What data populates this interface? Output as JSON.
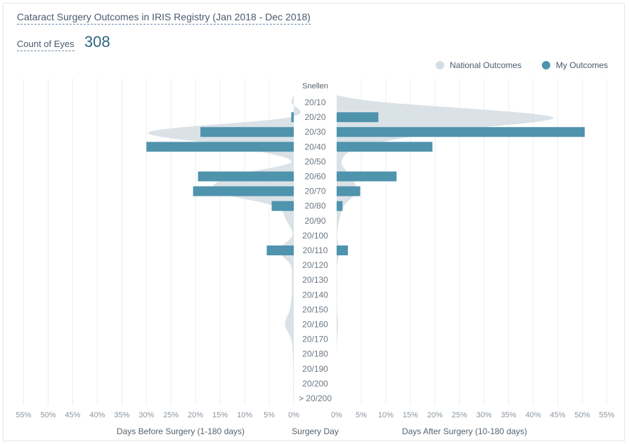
{
  "chart_data": {
    "type": "bar",
    "title": "Cataract Surgery Outcomes in IRIS Registry (Jan 2018 - Dec 2018)",
    "count_label": "Count of Eyes",
    "count_value": "308",
    "category_axis_label": "Snellen",
    "categories": [
      "20/10",
      "20/20",
      "20/30",
      "20/40",
      "20/50",
      "20/60",
      "20/70",
      "20/80",
      "20/90",
      "20/100",
      "20/110",
      "20/120",
      "20/130",
      "20/140",
      "20/150",
      "20/160",
      "20/170",
      "20/180",
      "20/190",
      "20/200",
      "> 20/200"
    ],
    "x_ticks_left": [
      "55%",
      "50%",
      "45%",
      "40%",
      "35%",
      "30%",
      "25%",
      "20%",
      "15%",
      "10%",
      "5%",
      "0%"
    ],
    "x_ticks_right": [
      "0%",
      "5%",
      "10%",
      "15%",
      "20%",
      "25%",
      "30%",
      "35%",
      "40%",
      "45%",
      "50%",
      "55%"
    ],
    "x_range": [
      0,
      55
    ],
    "xlabel_left": "Days Before Surgery (1-180 days)",
    "xlabel_center": "Surgery Day",
    "xlabel_right": "Days After Surgery (10-180 days)",
    "legend_position": "top-right",
    "grid": true,
    "series": [
      {
        "name": "My Outcomes",
        "color": "#4f93ad",
        "before": [
          0,
          0.5,
          19,
          30,
          0,
          19.5,
          20.5,
          4.5,
          0,
          0,
          5.5,
          0,
          0,
          0,
          0,
          0,
          0,
          0,
          0,
          0,
          0
        ],
        "after": [
          0,
          8.5,
          50.5,
          19.5,
          0,
          12.2,
          4.8,
          1.2,
          0,
          0,
          2.3,
          0,
          0,
          0,
          0,
          0,
          0,
          0,
          0,
          0,
          0
        ]
      },
      {
        "name": "National Outcomes",
        "color": "#d3dde3",
        "before": [
          0.5,
          0.8,
          29.5,
          12,
          0.5,
          13,
          16,
          4,
          1.5,
          0.3,
          3,
          0.6,
          0.4,
          0.4,
          0.8,
          1.8,
          0.5,
          0.2,
          0.1,
          0.1,
          0.1
        ],
        "after": [
          10,
          44,
          21,
          5,
          1,
          3,
          4,
          1.5,
          0.5,
          0.1,
          0.5,
          0.1,
          0.1,
          0.1,
          0.1,
          0.3,
          0.1,
          0,
          0,
          0,
          0
        ]
      }
    ]
  }
}
